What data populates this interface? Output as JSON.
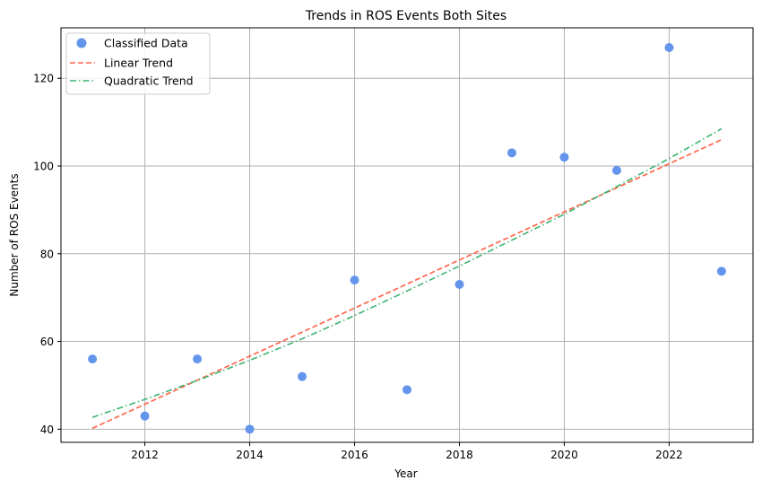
{
  "chart_data": {
    "type": "scatter",
    "title": "Trends in ROS Events Both Sites",
    "xlabel": "Year",
    "ylabel": "Number of ROS Events",
    "xlim": [
      2010.4,
      2023.6
    ],
    "ylim": [
      37,
      131.5
    ],
    "xticks": [
      2012,
      2014,
      2016,
      2018,
      2020,
      2022
    ],
    "yticks": [
      40,
      60,
      80,
      100,
      120
    ],
    "grid": true,
    "legend_position": "top-left",
    "series": [
      {
        "name": "Classified Data",
        "kind": "scatter",
        "color": "#6495ED",
        "x": [
          2011,
          2012,
          2013,
          2014,
          2015,
          2016,
          2017,
          2018,
          2019,
          2020,
          2021,
          2022,
          2023
        ],
        "y": [
          56,
          43,
          56,
          40,
          52,
          74,
          49,
          73,
          103,
          102,
          99,
          127,
          76
        ]
      },
      {
        "name": "Linear Trend",
        "kind": "line",
        "style": "dashed",
        "color": "#FF6347",
        "x": [
          2011,
          2023
        ],
        "y": [
          40.2,
          106
        ]
      },
      {
        "name": "Quadratic Trend",
        "kind": "line",
        "style": "dashdot",
        "color": "#3CB371",
        "x": [
          2011,
          2012,
          2013,
          2014,
          2015,
          2016,
          2017,
          2018,
          2019,
          2020,
          2021,
          2022,
          2023
        ],
        "y": [
          42.7,
          46.8,
          51.1,
          55.7,
          60.6,
          65.9,
          71.5,
          77.2,
          83.1,
          89.0,
          95.3,
          101.7,
          108.5
        ]
      }
    ]
  }
}
